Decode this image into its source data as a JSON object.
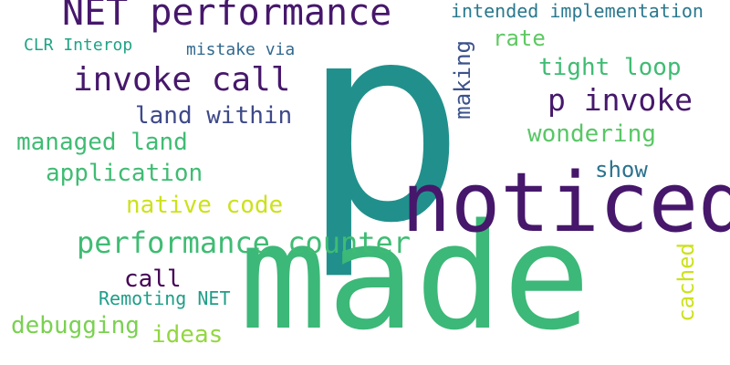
{
  "words": {
    "made": {
      "text": "made",
      "color": "#3cb878"
    },
    "p": {
      "text": "p",
      "color": "#21908c"
    },
    "noticed": {
      "text": "noticed",
      "color": "#46176b"
    },
    "net_performance": {
      "text": "NET performance",
      "color": "#46176b"
    },
    "invoke_call": {
      "text": "invoke call",
      "color": "#46186b"
    },
    "p_invoke": {
      "text": "p invoke",
      "color": "#46186b"
    },
    "performance_counter": {
      "text": "performance counter",
      "color": "#3fbc73"
    },
    "managed_land": {
      "text": "managed land",
      "color": "#3fbc73"
    },
    "land_within": {
      "text": "land within",
      "color": "#3e4989"
    },
    "application": {
      "text": "application",
      "color": "#3fbc73"
    },
    "tight_loop": {
      "text": "tight loop",
      "color": "#3fbc73"
    },
    "wondering": {
      "text": "wondering",
      "color": "#58c765"
    },
    "show": {
      "text": "show",
      "color": "#2c728e"
    },
    "native_code": {
      "text": "native code",
      "color": "#cde11d"
    },
    "call": {
      "text": "call",
      "color": "#440154"
    },
    "remoting_net": {
      "text": "Remoting NET",
      "color": "#1f9e89"
    },
    "debugging": {
      "text": "debugging",
      "color": "#7ad151"
    },
    "ideas": {
      "text": "ideas",
      "color": "#93d741"
    },
    "rate": {
      "text": "rate",
      "color": "#5ec962"
    },
    "intended_implementation": {
      "text": "intended implementation",
      "color": "#2a788e"
    },
    "clr_interop": {
      "text": "CLR Interop",
      "color": "#20a386"
    },
    "mistake_via": {
      "text": "mistake via",
      "color": "#31688e"
    },
    "making": {
      "text": "making",
      "color": "#3b528b",
      "orientation": "vertical"
    },
    "cached": {
      "text": "cached",
      "color": "#cde11d",
      "orientation": "vertical"
    }
  }
}
